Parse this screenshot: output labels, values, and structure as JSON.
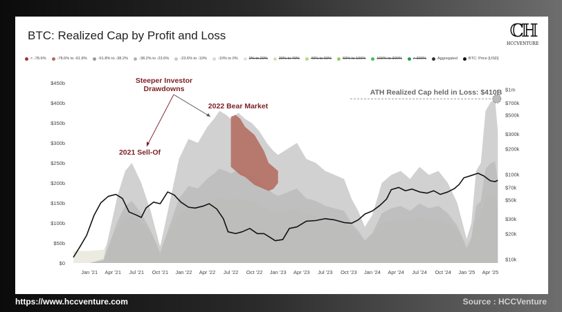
{
  "footer": {
    "url": "https://www.hccventure.com",
    "source": "Source : HCCVenture"
  },
  "logo": {
    "text": "HCCVENTURE"
  },
  "chart_data": {
    "type": "area",
    "title": "BTC: Realized Cap by Profit and Loss",
    "legend": [
      {
        "label": "< -78.6%",
        "color": "#a83232",
        "struck": false
      },
      {
        "label": "-78.6% to -61.8%",
        "color": "#b06a5c",
        "struck": false
      },
      {
        "label": "-61.8% to -38.2%",
        "color": "#9a9a9a",
        "struck": false
      },
      {
        "label": "-38.2% to -23.6%",
        "color": "#b3b3b3",
        "struck": false
      },
      {
        "label": "-23.6% to -10%",
        "color": "#c8c8c8",
        "struck": false
      },
      {
        "label": "-10% to 0%",
        "color": "#dadada",
        "struck": false
      },
      {
        "label": "0% to 20%",
        "color": "#e3e3d2",
        "struck": true
      },
      {
        "label": "20% to 40%",
        "color": "#dedcb0",
        "struck": true
      },
      {
        "label": "40% to 60%",
        "color": "#b6d88a",
        "struck": true
      },
      {
        "label": "60% to 100%",
        "color": "#8ccf6a",
        "struck": true
      },
      {
        "label": "100% to 300%",
        "color": "#3fbf55",
        "struck": true
      },
      {
        "label": "> 300%",
        "color": "#1f9e4a",
        "struck": true
      },
      {
        "label": "Aggregated",
        "color": "#333333",
        "struck": false
      },
      {
        "label": "BTC: Price [USD]",
        "color": "#111111",
        "struck": false
      }
    ],
    "x_ticks": [
      "Jan '21",
      "Apr '21",
      "Jul '21",
      "Oct '21",
      "Jan '22",
      "Apr '22",
      "Jul '22",
      "Oct '22",
      "Jan '23",
      "Apr '23",
      "Jul '23",
      "Oct '23",
      "Jan '24",
      "Apr '24",
      "Jul '24",
      "Oct '24",
      "Jan '25",
      "Apr '25"
    ],
    "x_range": [
      2020.83,
      2025.35
    ],
    "y_left_ticks": [
      {
        "v": 0,
        "label": "$0"
      },
      {
        "v": 50,
        "label": "$50b"
      },
      {
        "v": 100,
        "label": "$100b"
      },
      {
        "v": 150,
        "label": "$150b"
      },
      {
        "v": 200,
        "label": "$200b"
      },
      {
        "v": 250,
        "label": "$250b"
      },
      {
        "v": 300,
        "label": "$300b"
      },
      {
        "v": 350,
        "label": "$350b"
      },
      {
        "v": 400,
        "label": "$400b"
      },
      {
        "v": 450,
        "label": "$450b"
      }
    ],
    "y_left_range": [
      0,
      450
    ],
    "y_right_ticks": [
      {
        "v": 10000,
        "label": "$10k"
      },
      {
        "v": 20000,
        "label": "$20k"
      },
      {
        "v": 30000,
        "label": "$30k"
      },
      {
        "v": 50000,
        "label": "$50k"
      },
      {
        "v": 70000,
        "label": "$70k"
      },
      {
        "v": 100000,
        "label": "$100k"
      },
      {
        "v": 200000,
        "label": "$200k"
      },
      {
        "v": 300000,
        "label": "$300k"
      },
      {
        "v": 500000,
        "label": "$500k"
      },
      {
        "v": 700000,
        "label": "$700k"
      },
      {
        "v": 1000000,
        "label": "$1m"
      }
    ],
    "y_right_scale": "log",
    "y_right_range": [
      9000,
      1200000
    ],
    "loss_series": {
      "name": "Realized Cap held in Loss",
      "x": [
        2020.83,
        2021.0,
        2021.15,
        2021.3,
        2021.38,
        2021.45,
        2021.55,
        2021.65,
        2021.75,
        2021.85,
        2021.95,
        2022.05,
        2022.15,
        2022.25,
        2022.32,
        2022.38,
        2022.45,
        2022.5,
        2022.58,
        2022.65,
        2022.72,
        2022.8,
        2022.88,
        2022.95,
        2023.0,
        2023.1,
        2023.2,
        2023.3,
        2023.4,
        2023.5,
        2023.6,
        2023.7,
        2023.78,
        2023.85,
        2023.92,
        2024.0,
        2024.1,
        2024.2,
        2024.3,
        2024.4,
        2024.5,
        2024.6,
        2024.7,
        2024.8,
        2024.9,
        2025.0,
        2025.05,
        2025.1,
        2025.15,
        2025.2,
        2025.25,
        2025.3,
        2025.33
      ],
      "values": [
        0,
        0,
        10,
        170,
        230,
        250,
        200,
        130,
        40,
        150,
        260,
        310,
        300,
        340,
        360,
        380,
        370,
        360,
        375,
        360,
        350,
        330,
        300,
        280,
        270,
        285,
        300,
        260,
        250,
        230,
        220,
        210,
        160,
        130,
        90,
        120,
        200,
        220,
        230,
        210,
        240,
        220,
        230,
        200,
        150,
        60,
        100,
        230,
        250,
        380,
        400,
        410,
        330
      ]
    },
    "deep_loss_series": {
      "name": "-78.6% to -61.8%",
      "x": [
        2022.5,
        2022.55,
        2022.6,
        2022.65,
        2022.7,
        2022.75,
        2022.8,
        2022.85,
        2022.9,
        2022.95,
        2023.0
      ],
      "values": [
        365,
        370,
        360,
        340,
        330,
        320,
        300,
        280,
        250,
        240,
        230
      ],
      "lower": [
        240,
        230,
        220,
        215,
        205,
        195,
        190,
        185,
        180,
        185,
        200
      ]
    },
    "price_series": {
      "name": "BTC: Price [USD]",
      "x": [
        2020.83,
        2020.9,
        2020.97,
        2021.05,
        2021.12,
        2021.2,
        2021.28,
        2021.35,
        2021.42,
        2021.5,
        2021.55,
        2021.6,
        2021.68,
        2021.75,
        2021.83,
        2021.9,
        2021.97,
        2022.05,
        2022.12,
        2022.2,
        2022.27,
        2022.35,
        2022.42,
        2022.47,
        2022.55,
        2022.62,
        2022.7,
        2022.78,
        2022.85,
        2022.9,
        2022.97,
        2023.05,
        2023.12,
        2023.2,
        2023.3,
        2023.4,
        2023.5,
        2023.6,
        2023.7,
        2023.78,
        2023.85,
        2023.92,
        2024.0,
        2024.08,
        2024.15,
        2024.2,
        2024.28,
        2024.35,
        2024.42,
        2024.5,
        2024.58,
        2024.65,
        2024.72,
        2024.8,
        2024.87,
        2024.92,
        2024.97,
        2025.05,
        2025.12,
        2025.18,
        2025.25,
        2025.3,
        2025.33
      ],
      "values": [
        10500,
        14000,
        19000,
        33000,
        46000,
        55000,
        58000,
        52000,
        36000,
        33000,
        31000,
        40000,
        47000,
        45000,
        62000,
        57000,
        47000,
        41000,
        40000,
        42000,
        45000,
        39000,
        30000,
        21000,
        20000,
        21000,
        23000,
        20000,
        20000,
        18500,
        16500,
        17000,
        23000,
        24000,
        28000,
        28500,
        30000,
        29000,
        27000,
        26500,
        29000,
        34000,
        37000,
        43000,
        51000,
        66000,
        70000,
        64000,
        67000,
        62000,
        60000,
        64000,
        58000,
        62000,
        68000,
        76000,
        91000,
        97000,
        103000,
        96000,
        84000,
        82000,
        85000
      ]
    },
    "annotations": [
      {
        "id": "steeper",
        "text": "Steeper Investor\nDrawdowns"
      },
      {
        "id": "bear",
        "text": "2022 Bear Market"
      },
      {
        "id": "selloff",
        "text": "2021 Sell-Of"
      },
      {
        "id": "ath",
        "text": "ATH Realized Cap held in Loss: $410B"
      }
    ],
    "colors": {
      "loss_fill": "#c9c9c9",
      "loss_fill_dark": "#a8a8a8",
      "deep_loss": "#b3695c",
      "light_fill": "#ecebe0",
      "price_line": "#111111",
      "annotation": "#7a1f24",
      "ath_text": "#666666"
    }
  }
}
